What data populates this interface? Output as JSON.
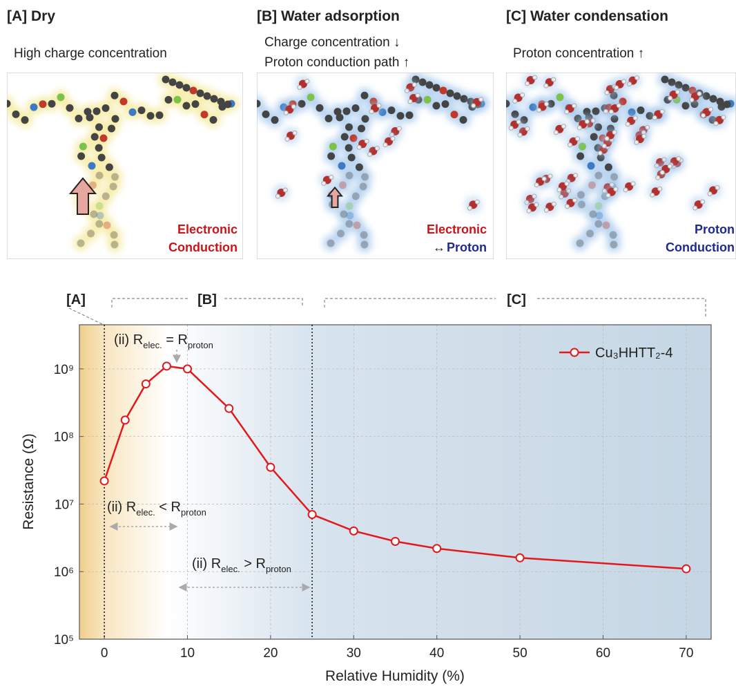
{
  "panels": [
    {
      "title": "[A] Dry",
      "caption": [
        "High charge concentration"
      ],
      "label": [
        "Electronic",
        "Conduction"
      ]
    },
    {
      "title": "[B] Water adsorption",
      "caption": [
        "Charge concentration ↓",
        "Proton conduction path ↑"
      ],
      "label": [
        "Electronic",
        "↔",
        "Proton"
      ]
    },
    {
      "title": "[C] Water condensation",
      "caption": [
        "Proton concentration ↑"
      ],
      "label": [
        "Proton",
        "Conduction"
      ]
    }
  ],
  "chart_data": {
    "type": "line",
    "x_label": "Relative Humidity (%)",
    "y_label": "Resistance (Ω)",
    "regions": [
      "[A]",
      "[B]",
      "[C]"
    ],
    "region_bounds": [
      0,
      25
    ],
    "annotations": [
      [
        "(ii) R",
        "elec.",
        " = R",
        "proton"
      ],
      [
        "(ii) R",
        "elec.",
        " < R",
        "proton"
      ],
      [
        "(ii) R",
        "elec.",
        " > R",
        "proton"
      ]
    ],
    "x": [
      0,
      2.5,
      5,
      7.5,
      10,
      15,
      20,
      25,
      30,
      35,
      40,
      50,
      70
    ],
    "series": [
      {
        "name": "Cu₃HHTT₂-4",
        "color": "#e3181d",
        "values": [
          22000000,
          175000000,
          600000000,
          1100000000,
          1000000000,
          260000000,
          35000000,
          7000000,
          4000000,
          2800000,
          2200000,
          1600000,
          1100000
        ]
      }
    ],
    "xlim": [
      -3,
      73
    ],
    "xticks": [
      0,
      10,
      20,
      30,
      40,
      50,
      60,
      70
    ],
    "ylim": [
      100000,
      4500000000
    ],
    "yticks": [
      {
        "value": 100000,
        "label": "10⁵"
      },
      {
        "value": 1000000,
        "label": "10⁶"
      },
      {
        "value": 10000000,
        "label": "10⁷"
      },
      {
        "value": 100000000,
        "label": "10⁸"
      },
      {
        "value": 1000000000,
        "label": "10⁹"
      }
    ],
    "log_y": true,
    "grid": true,
    "legend": "upper right"
  }
}
